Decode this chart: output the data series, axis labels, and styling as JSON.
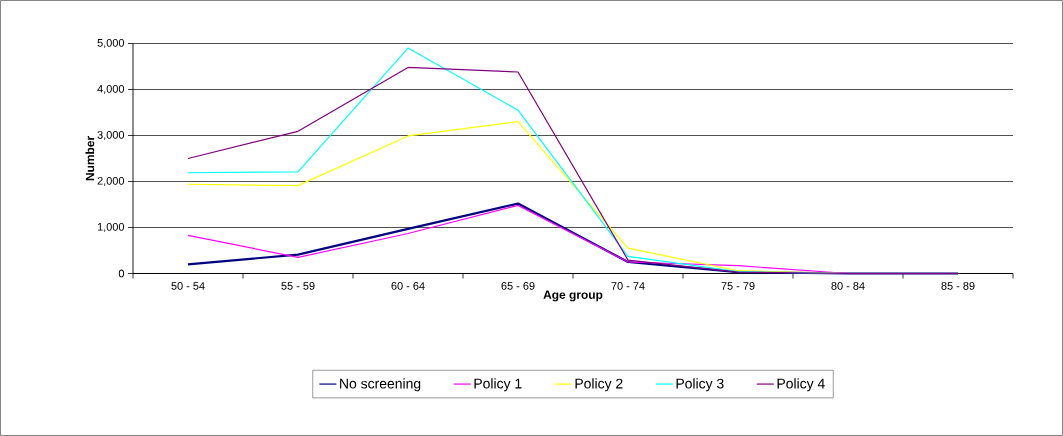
{
  "chart_data": {
    "type": "line",
    "xlabel": "Age group",
    "ylabel": "Number",
    "categories": [
      "50 - 54",
      "55 - 59",
      "60 - 64",
      "65 - 69",
      "70 - 74",
      "75 - 79",
      "80 - 84",
      "85 - 89"
    ],
    "series": [
      {
        "name": "No screening",
        "color": "#000080",
        "values": [
          200,
          410,
          970,
          1520,
          250,
          30,
          0,
          0
        ]
      },
      {
        "name": "Policy 1",
        "color": "#ff00ff",
        "values": [
          830,
          350,
          870,
          1480,
          250,
          170,
          0,
          0
        ]
      },
      {
        "name": "Policy 2",
        "color": "#ffff00",
        "values": [
          1940,
          1910,
          2990,
          3300,
          550,
          60,
          0,
          0
        ]
      },
      {
        "name": "Policy 3",
        "color": "#00ffff",
        "values": [
          2190,
          2210,
          4900,
          3550,
          370,
          40,
          0,
          0
        ]
      },
      {
        "name": "Policy 4",
        "color": "#800080",
        "values": [
          2500,
          3090,
          4480,
          4380,
          290,
          30,
          0,
          0
        ]
      }
    ],
    "ylim": [
      0,
      5000
    ],
    "yticks": [
      0,
      {
        "value": 1000,
        "label": "1,000"
      },
      {
        "value": 2000,
        "label": "2,000"
      },
      {
        "value": 3000,
        "label": "3,000"
      },
      {
        "value": 4000,
        "label": "4,000"
      },
      {
        "value": 5000,
        "label": "5,000"
      }
    ],
    "grid": "y",
    "legend": "bottom",
    "marker": "none",
    "line_style": "solid"
  }
}
